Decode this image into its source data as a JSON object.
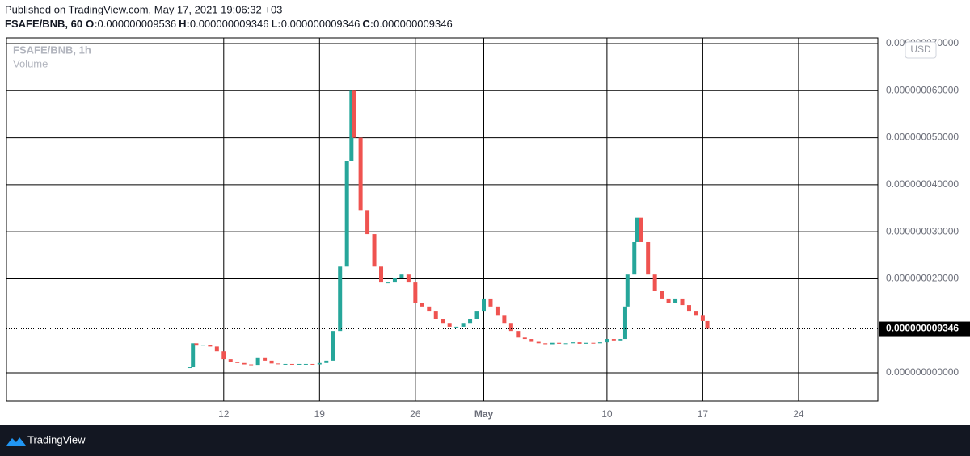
{
  "header": {
    "published": "Published on TradingView.com, May 17, 2021 19:06:32 +03",
    "symbol": "FSAFE/BNB, 60",
    "ohlc": [
      {
        "label": "O:",
        "value": "0.000000009536"
      },
      {
        "label": "H:",
        "value": "0.000000009346"
      },
      {
        "label": "L:",
        "value": "0.000000009346"
      },
      {
        "label": "C:",
        "value": "0.000000009346"
      }
    ]
  },
  "chart_data": {
    "type": "candlestick",
    "legend": [
      "FSAFE/BNB, 1h",
      "Volume"
    ],
    "currency": "USD",
    "up_color": "#26a69a",
    "down_color": "#ef5350",
    "x": [
      "2021-04-09 12:00",
      "2021-04-09 18:00",
      "2021-04-10 00:00",
      "2021-04-10 12:00",
      "2021-04-11 00:00",
      "2021-04-11 12:00",
      "2021-04-12 00:00",
      "2021-04-12 12:00",
      "2021-04-13 00:00",
      "2021-04-13 12:00",
      "2021-04-14 00:00",
      "2021-04-14 12:00",
      "2021-04-15 00:00",
      "2021-04-15 12:00",
      "2021-04-16 00:00",
      "2021-04-16 12:00",
      "2021-04-17 00:00",
      "2021-04-17 12:00",
      "2021-04-18 00:00",
      "2021-04-18 12:00",
      "2021-04-19 00:00",
      "2021-04-19 12:00",
      "2021-04-20 00:00",
      "2021-04-20 12:00",
      "2021-04-21 00:00",
      "2021-04-21 08:00",
      "2021-04-21 12:00",
      "2021-04-22 00:00",
      "2021-04-22 12:00",
      "2021-04-23 00:00",
      "2021-04-23 12:00",
      "2021-04-24 00:00",
      "2021-04-24 12:00",
      "2021-04-25 00:00",
      "2021-04-25 12:00",
      "2021-04-26 00:00",
      "2021-04-26 12:00",
      "2021-04-27 00:00",
      "2021-04-27 12:00",
      "2021-04-28 00:00",
      "2021-04-28 12:00",
      "2021-04-29 00:00",
      "2021-04-29 12:00",
      "2021-04-30 00:00",
      "2021-04-30 12:00",
      "2021-05-01 00:00",
      "2021-05-01 12:00",
      "2021-05-02 00:00",
      "2021-05-02 12:00",
      "2021-05-03 00:00",
      "2021-05-03 12:00",
      "2021-05-04 00:00",
      "2021-05-04 12:00",
      "2021-05-05 00:00",
      "2021-05-05 12:00",
      "2021-05-06 00:00",
      "2021-05-06 12:00",
      "2021-05-07 00:00",
      "2021-05-07 12:00",
      "2021-05-08 00:00",
      "2021-05-08 12:00",
      "2021-05-09 00:00",
      "2021-05-09 12:00",
      "2021-05-10 00:00",
      "2021-05-10 12:00",
      "2021-05-11 00:00",
      "2021-05-11 08:00",
      "2021-05-11 12:00",
      "2021-05-12 00:00",
      "2021-05-12 04:00",
      "2021-05-12 12:00",
      "2021-05-13 00:00",
      "2021-05-13 12:00",
      "2021-05-14 00:00",
      "2021-05-14 12:00",
      "2021-05-15 00:00",
      "2021-05-15 12:00",
      "2021-05-16 00:00",
      "2021-05-16 12:00",
      "2021-05-17 00:00",
      "2021-05-17 08:00"
    ],
    "values": [
      1.2e-09,
      6.3e-09,
      5.8e-09,
      6e-09,
      5.6e-09,
      4.6e-09,
      2.9e-09,
      2.3e-09,
      2.1e-09,
      1.8e-09,
      1.7e-09,
      3.3e-09,
      2.6e-09,
      2e-09,
      1.9e-09,
      1.9e-09,
      1.8e-09,
      1.9e-09,
      1.9e-09,
      1.8e-09,
      2.1e-09,
      2.6e-09,
      8.9e-09,
      2.26e-08,
      4.5e-08,
      6e-08,
      5e-08,
      3.46e-08,
      2.95e-08,
      2.26e-08,
      1.92e-08,
      1.92e-08,
      2.01e-08,
      2.09e-08,
      1.92e-08,
      1.49e-08,
      1.41e-08,
      1.32e-08,
      1.15e-08,
      1.06e-08,
      9.8e-09,
      9.8e-09,
      1.06e-08,
      1.15e-08,
      1.32e-08,
      1.58e-08,
      1.41e-08,
      1.23e-08,
      1.06e-08,
      8.9e-09,
      7.5e-09,
      7.2e-09,
      6.6e-09,
      6.3e-09,
      6.1e-09,
      6.4e-09,
      6.2e-09,
      6.3e-09,
      6.5e-09,
      6.2e-09,
      6.4e-09,
      6.3e-09,
      6.5e-09,
      7.2e-09,
      6.9e-09,
      7.2e-09,
      1.41e-08,
      2.09e-08,
      2.78e-08,
      3.3e-08,
      2.78e-08,
      2.09e-08,
      1.75e-08,
      1.58e-08,
      1.49e-08,
      1.58e-08,
      1.44e-08,
      1.32e-08,
      1.23e-08,
      1.1e-08,
      9.346e-09
    ],
    "last_price": {
      "value": 9.346e-09,
      "label": "0.000000009346"
    },
    "xlim": [
      "2021-03-27 03:00",
      "2021-05-29 19:00"
    ],
    "xticks": [
      {
        "value": "2021-04-12 00:00",
        "label": "12"
      },
      {
        "value": "2021-04-19 00:00",
        "label": "19"
      },
      {
        "value": "2021-04-26 00:00",
        "label": "26"
      },
      {
        "value": "2021-05-01 00:00",
        "label": "May"
      },
      {
        "value": "2021-05-10 00:00",
        "label": "10"
      },
      {
        "value": "2021-05-17 00:00",
        "label": "17"
      },
      {
        "value": "2021-05-24 00:00",
        "label": "24"
      }
    ],
    "ylim": [
      -6e-09,
      7.12e-08
    ],
    "yticks": [
      {
        "value": 0,
        "label": "0.000000000000"
      },
      {
        "value": 2e-08,
        "label": "0.000000020000"
      },
      {
        "value": 3e-08,
        "label": "0.000000030000"
      },
      {
        "value": 4e-08,
        "label": "0.000000040000"
      },
      {
        "value": 5e-08,
        "label": "0.000000050000"
      },
      {
        "value": 6e-08,
        "label": "0.000000060000"
      },
      {
        "value": 7e-08,
        "label": "0.000000070000"
      }
    ],
    "grid": true
  },
  "footer": {
    "brand": "TradingView"
  }
}
